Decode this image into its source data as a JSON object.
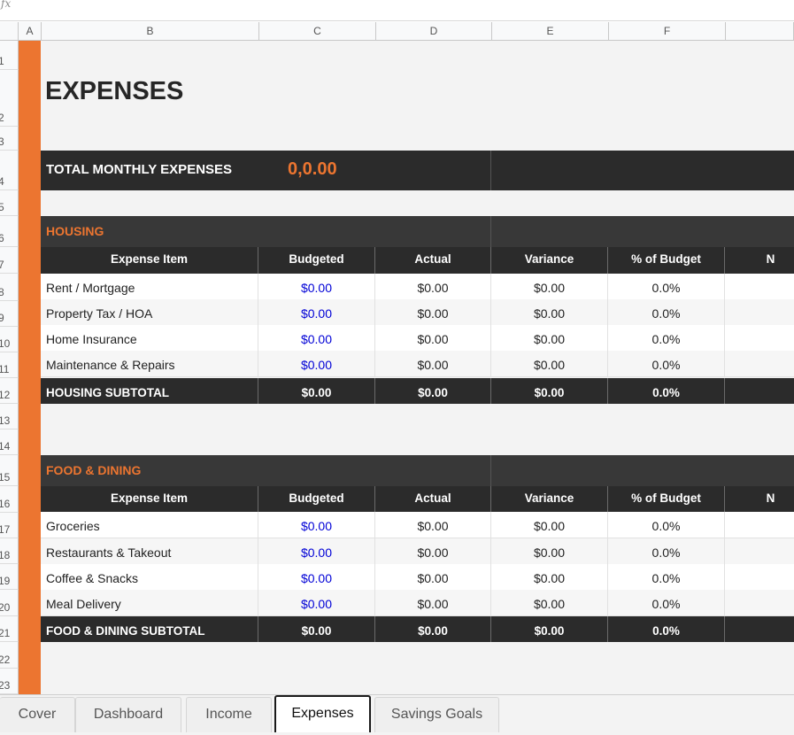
{
  "formula_bar": {
    "label": "fx"
  },
  "columns": [
    "A",
    "B",
    "C",
    "D",
    "E",
    "F"
  ],
  "rows": [
    "1",
    "2",
    "3",
    "4",
    "5",
    "6",
    "7",
    "8",
    "9",
    "10",
    "11",
    "12",
    "13",
    "14",
    "15",
    "16",
    "17",
    "18",
    "19",
    "20",
    "21",
    "22",
    "23"
  ],
  "title": "EXPENSES",
  "total": {
    "label": "TOTAL MONTHLY EXPENSES",
    "value": "0,0.00"
  },
  "table_headers": [
    "Expense Item",
    "Budgeted",
    "Actual",
    "Variance",
    "% of Budget",
    "N"
  ],
  "sections": [
    {
      "name": "HOUSING",
      "items": [
        {
          "item": "Rent / Mortgage",
          "budgeted": "$0.00",
          "actual": "$0.00",
          "variance": "$0.00",
          "pct": "0.0%"
        },
        {
          "item": "Property Tax / HOA",
          "budgeted": "$0.00",
          "actual": "$0.00",
          "variance": "$0.00",
          "pct": "0.0%"
        },
        {
          "item": "Home Insurance",
          "budgeted": "$0.00",
          "actual": "$0.00",
          "variance": "$0.00",
          "pct": "0.0%"
        },
        {
          "item": "Maintenance & Repairs",
          "budgeted": "$0.00",
          "actual": "$0.00",
          "variance": "$0.00",
          "pct": "0.0%"
        }
      ],
      "subtotal": {
        "item": "HOUSING SUBTOTAL",
        "budgeted": "$0.00",
        "actual": "$0.00",
        "variance": "$0.00",
        "pct": "0.0%"
      }
    },
    {
      "name": "FOOD & DINING",
      "items": [
        {
          "item": "Groceries",
          "budgeted": "$0.00",
          "actual": "$0.00",
          "variance": "$0.00",
          "pct": "0.0%"
        },
        {
          "item": "Restaurants & Takeout",
          "budgeted": "$0.00",
          "actual": "$0.00",
          "variance": "$0.00",
          "pct": "0.0%"
        },
        {
          "item": "Coffee & Snacks",
          "budgeted": "$0.00",
          "actual": "$0.00",
          "variance": "$0.00",
          "pct": "0.0%"
        },
        {
          "item": "Meal Delivery",
          "budgeted": "$0.00",
          "actual": "$0.00",
          "variance": "$0.00",
          "pct": "0.0%"
        }
      ],
      "subtotal": {
        "item": "FOOD & DINING SUBTOTAL",
        "budgeted": "$0.00",
        "actual": "$0.00",
        "variance": "$0.00",
        "pct": "0.0%"
      }
    }
  ],
  "sheet_tabs": [
    {
      "label": "Cover",
      "active": false
    },
    {
      "label": "Dashboard",
      "active": false
    },
    {
      "label": "Income",
      "active": false
    },
    {
      "label": "Expenses",
      "active": true
    },
    {
      "label": "Savings Goals",
      "active": false
    }
  ],
  "colors": {
    "accent": "#ec7530",
    "dark": "#2b2b2b",
    "input_blue": "#0000d6"
  }
}
